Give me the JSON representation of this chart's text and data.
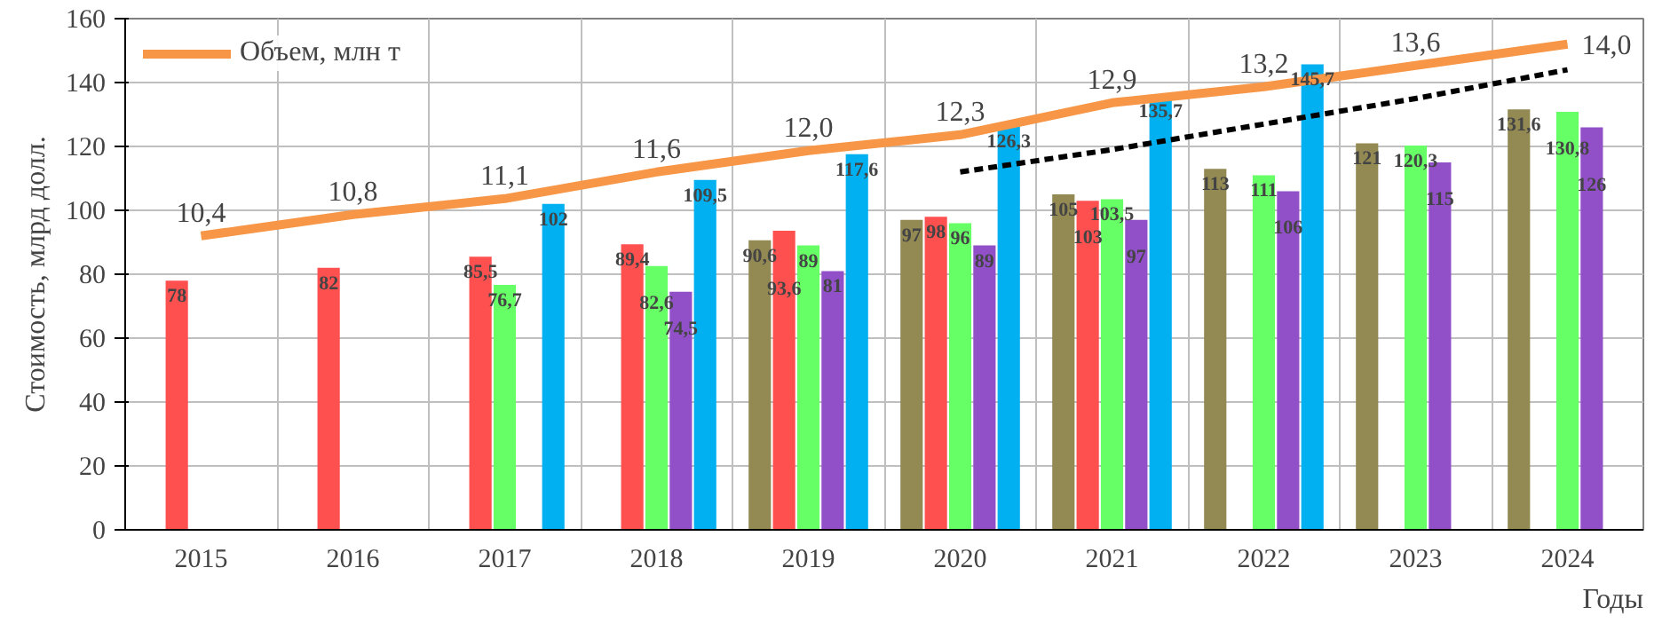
{
  "chart_data": {
    "type": "bar",
    "ylabel": "Стоимость, млрд долл.",
    "xlabel": "Годы",
    "categories": [
      "2015",
      "2016",
      "2017",
      "2018",
      "2019",
      "2020",
      "2021",
      "2022",
      "2023",
      "2024"
    ],
    "ylim": [
      0,
      160
    ],
    "yticks": [
      0,
      20,
      40,
      60,
      80,
      100,
      120,
      140,
      160
    ],
    "y2lim": [
      4.88,
      14.48
    ],
    "grid": true,
    "legend": "top left",
    "series": [
      {
        "color": "#938953",
        "values": [
          null,
          null,
          null,
          null,
          90.6,
          97,
          105,
          113,
          121,
          131.6
        ],
        "value_labels": [
          null,
          null,
          null,
          null,
          "90,6",
          "97",
          "105",
          "113",
          "121",
          "131,6"
        ]
      },
      {
        "color": "#ff5050",
        "values": [
          78,
          82,
          85.5,
          89.4,
          93.6,
          98,
          103,
          null,
          null,
          null
        ],
        "value_labels": [
          "78",
          "82",
          "85,5",
          "89,4",
          "93,6",
          "98",
          "103",
          null,
          null,
          null
        ]
      },
      {
        "color": "#66ff66",
        "values": [
          null,
          null,
          76.7,
          82.6,
          89,
          96,
          103.5,
          111,
          120.3,
          130.8
        ],
        "value_labels": [
          null,
          null,
          "76,7",
          "82,6",
          "89",
          "96",
          "103,5",
          "111",
          "120,3",
          "130,8"
        ]
      },
      {
        "color": "#9150c8",
        "values": [
          null,
          null,
          null,
          74.5,
          81,
          89,
          97,
          106,
          115,
          126
        ],
        "value_labels": [
          null,
          null,
          null,
          "74,5",
          "81",
          "89",
          "97",
          "106",
          "115",
          "126"
        ]
      },
      {
        "color": "#00b0f0",
        "values": [
          null,
          null,
          102,
          109.5,
          117.6,
          126.3,
          135.7,
          145.7,
          null,
          null
        ],
        "value_labels": [
          null,
          null,
          "102",
          "109,5",
          "117,6",
          "126,3",
          "135,7",
          "145,7",
          null,
          null
        ]
      },
      {
        "type": "line",
        "axis": "y2",
        "name": "Объем, млн т",
        "color": "#f79646",
        "values": [
          10.4,
          10.8,
          11.1,
          11.6,
          12.0,
          12.3,
          12.9,
          13.2,
          13.6,
          14.0
        ],
        "value_labels": [
          "10,4",
          "10,8",
          "11,1",
          "11,6",
          "12,0",
          "12,3",
          "12,9",
          "13,2",
          "13,6",
          "14,0"
        ]
      },
      {
        "type": "line",
        "line_style": "dashed",
        "color": "#000000",
        "values": [
          null,
          null,
          null,
          null,
          null,
          112,
          119,
          127,
          135,
          144
        ]
      }
    ]
  }
}
